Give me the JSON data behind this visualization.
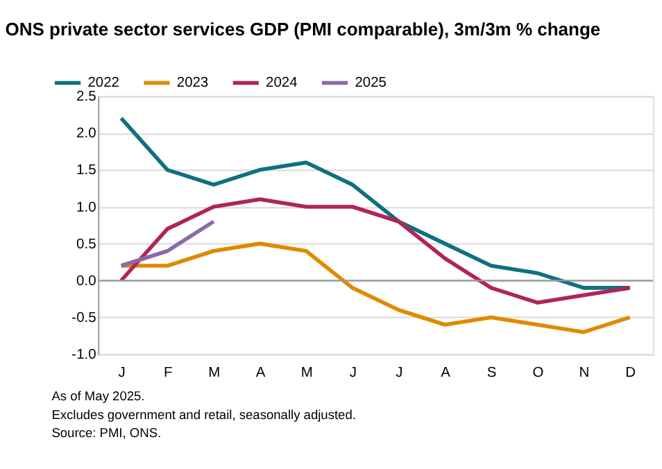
{
  "chart_data": {
    "type": "line",
    "title": "ONS private sector services GDP (PMI comparable), 3m/3m % change",
    "categories": [
      "J",
      "F",
      "M",
      "A",
      "M",
      "J",
      "J",
      "A",
      "S",
      "O",
      "N",
      "D"
    ],
    "series": [
      {
        "name": "2022",
        "color": "#0f7080",
        "values": [
          2.2,
          1.5,
          1.3,
          1.5,
          1.6,
          1.3,
          0.8,
          0.5,
          0.2,
          0.1,
          -0.1,
          -0.1
        ]
      },
      {
        "name": "2023",
        "color": "#e08a00",
        "values": [
          0.2,
          0.2,
          0.4,
          0.5,
          0.4,
          -0.1,
          -0.4,
          -0.6,
          -0.5,
          -0.6,
          -0.7,
          -0.5
        ]
      },
      {
        "name": "2024",
        "color": "#b0245a",
        "values": [
          0.0,
          0.7,
          1.0,
          1.1,
          1.0,
          1.0,
          0.8,
          0.3,
          -0.1,
          -0.3,
          -0.2,
          -0.1
        ]
      },
      {
        "name": "2025",
        "color": "#8a6aa8",
        "values": [
          0.2,
          0.4,
          0.8,
          null,
          null,
          null,
          null,
          null,
          null,
          null,
          null,
          null
        ]
      }
    ],
    "ylim": [
      -1.0,
      2.5
    ],
    "yticks": [
      {
        "value": -1.0,
        "label": "-1.0"
      },
      {
        "value": -0.5,
        "label": "-0.5"
      },
      {
        "value": 0,
        "label": "0.0"
      },
      {
        "value": 0.5,
        "label": "0.5"
      },
      {
        "value": 1.0,
        "label": "1.0"
      },
      {
        "value": 1.5,
        "label": "1.5"
      },
      {
        "value": 2.0,
        "label": "2.0"
      },
      {
        "value": 2.5,
        "label": "2.5"
      }
    ],
    "grid": "y",
    "legend": "top left",
    "line_style": "solid",
    "marker": "none",
    "ref_lines": [
      {
        "axis": "y",
        "value": 0,
        "color": "#999999"
      }
    ],
    "annotations": [
      "As of May 2025.",
      "Excludes government and  retail, seasonally adjusted.",
      "Source: PMI, ONS."
    ]
  }
}
